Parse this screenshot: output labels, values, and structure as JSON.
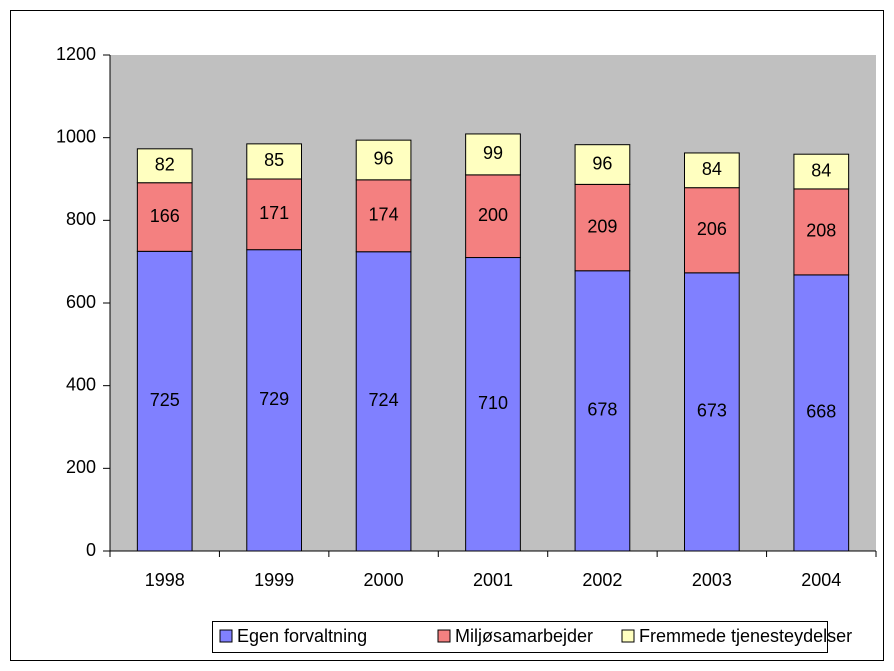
{
  "chart_data": {
    "type": "stacked_bar",
    "categories": [
      "1998",
      "1999",
      "2000",
      "2001",
      "2002",
      "2003",
      "2004"
    ],
    "series": [
      {
        "name": "Egen forvaltning",
        "color": "#8080ff",
        "values": [
          725,
          729,
          724,
          710,
          678,
          673,
          668
        ]
      },
      {
        "name": "Miljøsamarbejder",
        "color": "#f48080",
        "values": [
          166,
          171,
          174,
          200,
          209,
          206,
          208
        ]
      },
      {
        "name": "Fremmede tjenesteydelser",
        "color": "#ffffc0",
        "values": [
          82,
          85,
          96,
          99,
          96,
          84,
          84
        ]
      }
    ],
    "ylim": [
      0,
      1200
    ],
    "yticks": [
      0,
      200,
      400,
      600,
      800,
      1000,
      1200
    ],
    "grid": false,
    "legend": "bottom"
  }
}
